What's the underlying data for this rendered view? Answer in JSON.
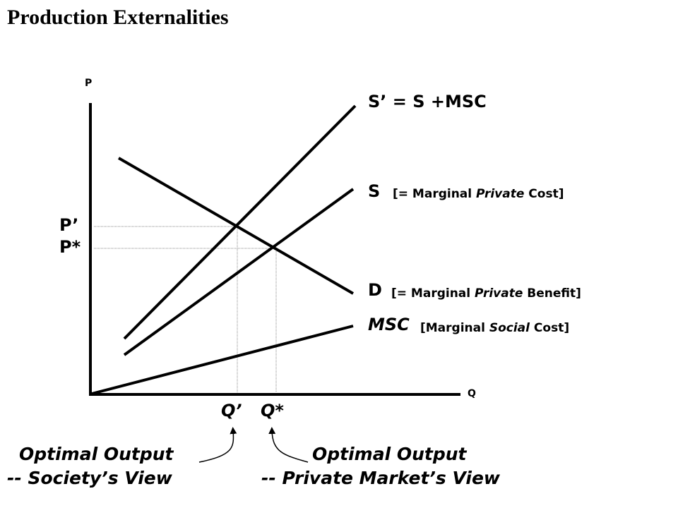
{
  "title": "Production Externalities",
  "axes": {
    "y_label": "P",
    "x_label": "Q"
  },
  "curves": {
    "s_prime": {
      "label": "S’ = S +MSC"
    },
    "s": {
      "label": "S",
      "note_prefix": "[= Marginal ",
      "note_italic": "Private",
      "note_suffix": " Cost]"
    },
    "d": {
      "label": "D",
      "note_prefix": "[= Marginal ",
      "note_italic": "Private",
      "note_suffix": " Benefit]"
    },
    "msc": {
      "label": "MSC",
      "note_prefix": "[Marginal ",
      "note_italic": "Social",
      "note_suffix": " Cost]"
    }
  },
  "prices": {
    "p_prime": "P’",
    "p_star": "P*"
  },
  "quantities": {
    "q_prime": "Q’",
    "q_star": "Q*"
  },
  "captions": {
    "society": {
      "line1": "Optimal Output",
      "line2": "-- Society’s View"
    },
    "private": {
      "line1": "Optimal Output",
      "line2": "-- Private Market’s View"
    }
  }
}
